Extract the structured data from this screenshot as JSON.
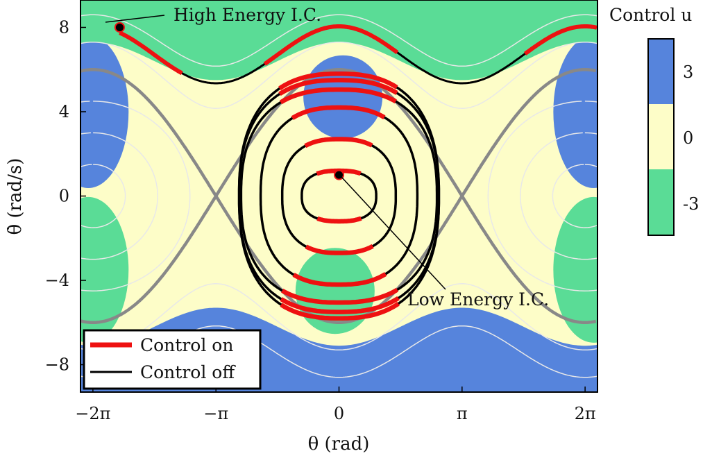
{
  "chart_data": {
    "type": "line",
    "xlabel": "θ (rad)",
    "ylabel": "θ̇ (rad/s)",
    "xlim": [
      -6.6,
      6.6
    ],
    "ylim": [
      -9.3,
      9.3
    ],
    "xticks": [
      {
        "value": -6.2832,
        "label": "−2π"
      },
      {
        "value": -3.1416,
        "label": "−π"
      },
      {
        "value": 0,
        "label": "0"
      },
      {
        "value": 3.1416,
        "label": "π"
      },
      {
        "value": 6.2832,
        "label": "2π"
      }
    ],
    "yticks": [
      {
        "value": -8,
        "label": "−8"
      },
      {
        "value": -4,
        "label": "−4"
      },
      {
        "value": 0,
        "label": "0"
      },
      {
        "value": 4,
        "label": "4"
      },
      {
        "value": 8,
        "label": "8"
      }
    ],
    "regions": {
      "description_colors": {
        "u_pos": "#5684dc",
        "u_zero": "#fdfdc8",
        "u_neg": "#5adc96"
      }
    },
    "separatrix_amplitude": 6.0,
    "series": [
      {
        "name": "Control on",
        "color": "#ee1111"
      },
      {
        "name": "Control off",
        "color": "#000000"
      }
    ],
    "high_energy_ic": {
      "theta": -5.6,
      "thetadot": 8.0,
      "label": "High Energy I.C."
    },
    "low_energy_ic": {
      "theta": 0.0,
      "thetadot": 1.0,
      "label": "Low Energy I.C."
    },
    "low_orbits": [
      {
        "a": 0.95,
        "b": 1.2
      },
      {
        "a": 1.45,
        "b": 2.7
      },
      {
        "a": 2.0,
        "b": 4.2
      },
      {
        "a": 2.5,
        "b": 5.05
      },
      {
        "a": 2.55,
        "b": 5.5
      },
      {
        "a": 2.55,
        "b": 5.8
      }
    ],
    "high_trajectory": {
      "mean": 6.7,
      "amp": 1.35
    },
    "colorbar": {
      "title": "Control u",
      "ticks": [
        "3",
        "0",
        "-3"
      ],
      "colors": [
        "#5684dc",
        "#fdfdc8",
        "#5adc96"
      ]
    },
    "legend": {
      "position": "bottom-left",
      "entries": [
        "Control on",
        "Control off"
      ]
    }
  }
}
